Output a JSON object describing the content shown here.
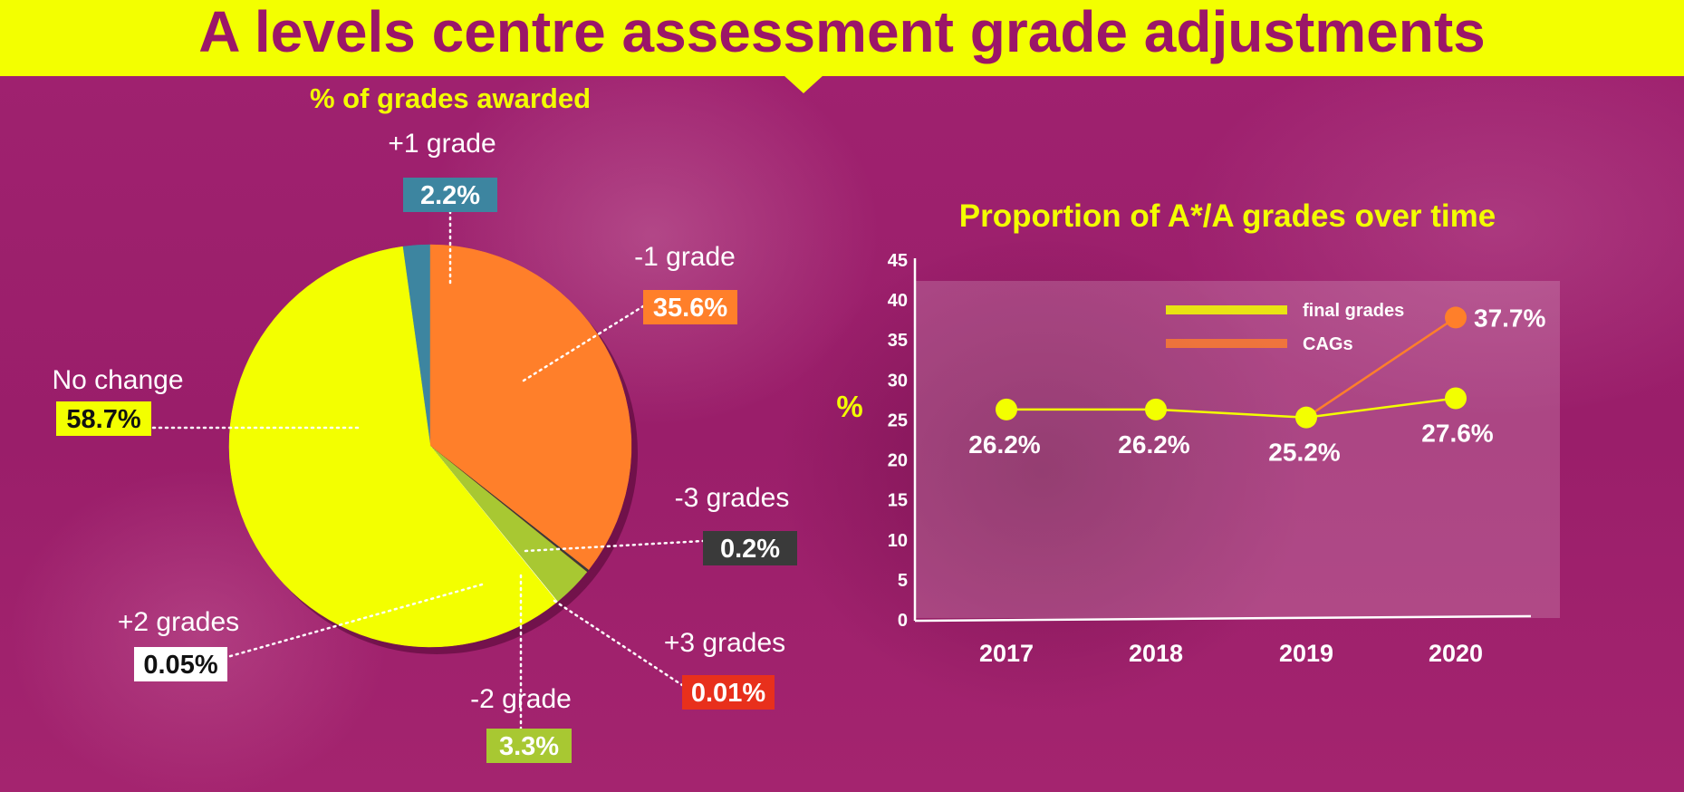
{
  "header": {
    "title": "A levels centre assessment grade adjustments"
  },
  "colors": {
    "banner": "#f3ff00",
    "title": "#9b1668",
    "background": "#9b1f6c"
  },
  "chart_data": [
    {
      "type": "pie",
      "title": "% of grades awarded",
      "slices": [
        {
          "label": "+1 grade",
          "display": "2.2%",
          "value": 2.2,
          "color": "#3d85a0",
          "text_color": "#ffffff"
        },
        {
          "label": "-1 grade",
          "display": "35.6%",
          "value": 35.6,
          "color": "#ff7f2a",
          "text_color": "#ffffff"
        },
        {
          "label": "-3 grades",
          "display": "0.2%",
          "value": 0.2,
          "color": "#3a3a3a",
          "text_color": "#ffffff"
        },
        {
          "label": "+3 grades",
          "display": "0.01%",
          "value": 0.01,
          "color": "#e8301c",
          "text_color": "#ffffff"
        },
        {
          "label": "-2 grade",
          "display": "3.3%",
          "value": 3.3,
          "color": "#a8c832",
          "text_color": "#ffffff"
        },
        {
          "label": "+2 grades",
          "display": "0.05%",
          "value": 0.05,
          "color": "#ffffff",
          "text_color": "#111111"
        },
        {
          "label": "No change",
          "display": "58.7%",
          "value": 58.7,
          "color": "#f3ff00",
          "text_color": "#111111"
        }
      ]
    },
    {
      "type": "line",
      "title": "Proportion of A*/A grades over time",
      "ylabel": "%",
      "ylim": [
        0,
        45
      ],
      "yticks": [
        0,
        5,
        10,
        15,
        20,
        25,
        30,
        35,
        40,
        45
      ],
      "categories": [
        "2017",
        "2018",
        "2019",
        "2020"
      ],
      "legend_position": "top-right",
      "series": [
        {
          "name": "final grades",
          "color": "#f3ff00",
          "values": [
            26.2,
            26.2,
            25.2,
            27.6
          ],
          "labels": [
            "26.2%",
            "26.2%",
            "25.2%",
            "27.6%"
          ]
        },
        {
          "name": "CAGs",
          "color": "#ff7f2a",
          "values": [
            null,
            null,
            25.2,
            37.7
          ],
          "labels": [
            "",
            "",
            "",
            "37.7%"
          ]
        }
      ]
    }
  ]
}
